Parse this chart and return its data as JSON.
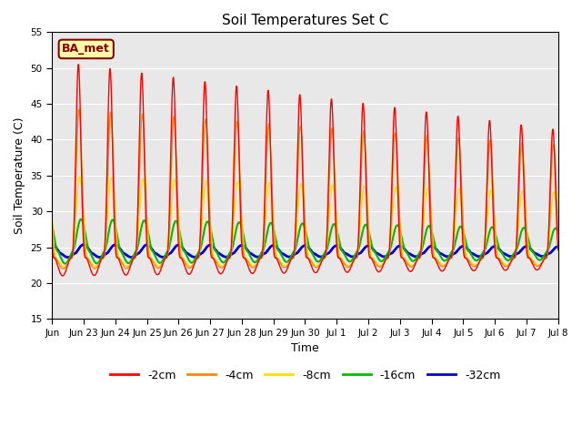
{
  "title": "Soil Temperatures Set C",
  "xlabel": "Time",
  "ylabel": "Soil Temperature (C)",
  "ylim": [
    15,
    55
  ],
  "yticks": [
    15,
    20,
    25,
    30,
    35,
    40,
    45,
    50,
    55
  ],
  "series_colors": [
    "#ff0000",
    "#ff8800",
    "#ffdd00",
    "#00bb00",
    "#0000cc"
  ],
  "series_labels": [
    "-2cm",
    "-4cm",
    "-8cm",
    "-16cm",
    "-32cm"
  ],
  "series_linewidths": [
    1.0,
    1.0,
    1.0,
    1.5,
    2.0
  ],
  "background_color": "#e8e8e8",
  "annotation_text": "BA_met",
  "annotation_bbox_fc": "#ffffaa",
  "annotation_bbox_ec": "#880000",
  "annotation_color": "#880000",
  "tick_labels": [
    "Jun",
    "Jun 23",
    "Jun 24",
    "Jun 25",
    "Jun 26",
    "Jun 27",
    "Jun 28",
    "Jun 29",
    "Jun 30",
    "Jul 1",
    "Jul 2",
    "Jul 3",
    "Jul 4",
    "Jul 5",
    "Jul 6",
    "Jul 7",
    "Jul 8"
  ],
  "n_days": 16,
  "points_per_day": 240,
  "phase_peak_hour": [
    14.0,
    14.5,
    15.0,
    16.0,
    18.0
  ],
  "mean_temps": [
    23.5,
    23.5,
    23.5,
    24.5,
    24.2
  ],
  "amp_day_peaks": [
    27.5,
    21.0,
    11.5,
    4.5,
    1.2
  ],
  "amp_day_troughs": [
    2.5,
    1.5,
    1.2,
    1.8,
    0.6
  ],
  "amp_decay_factor": [
    0.65,
    0.75,
    0.8,
    0.7,
    0.75
  ],
  "spike_power": [
    4,
    3,
    2,
    1.5,
    1.2
  ],
  "legend_ncol": 5
}
